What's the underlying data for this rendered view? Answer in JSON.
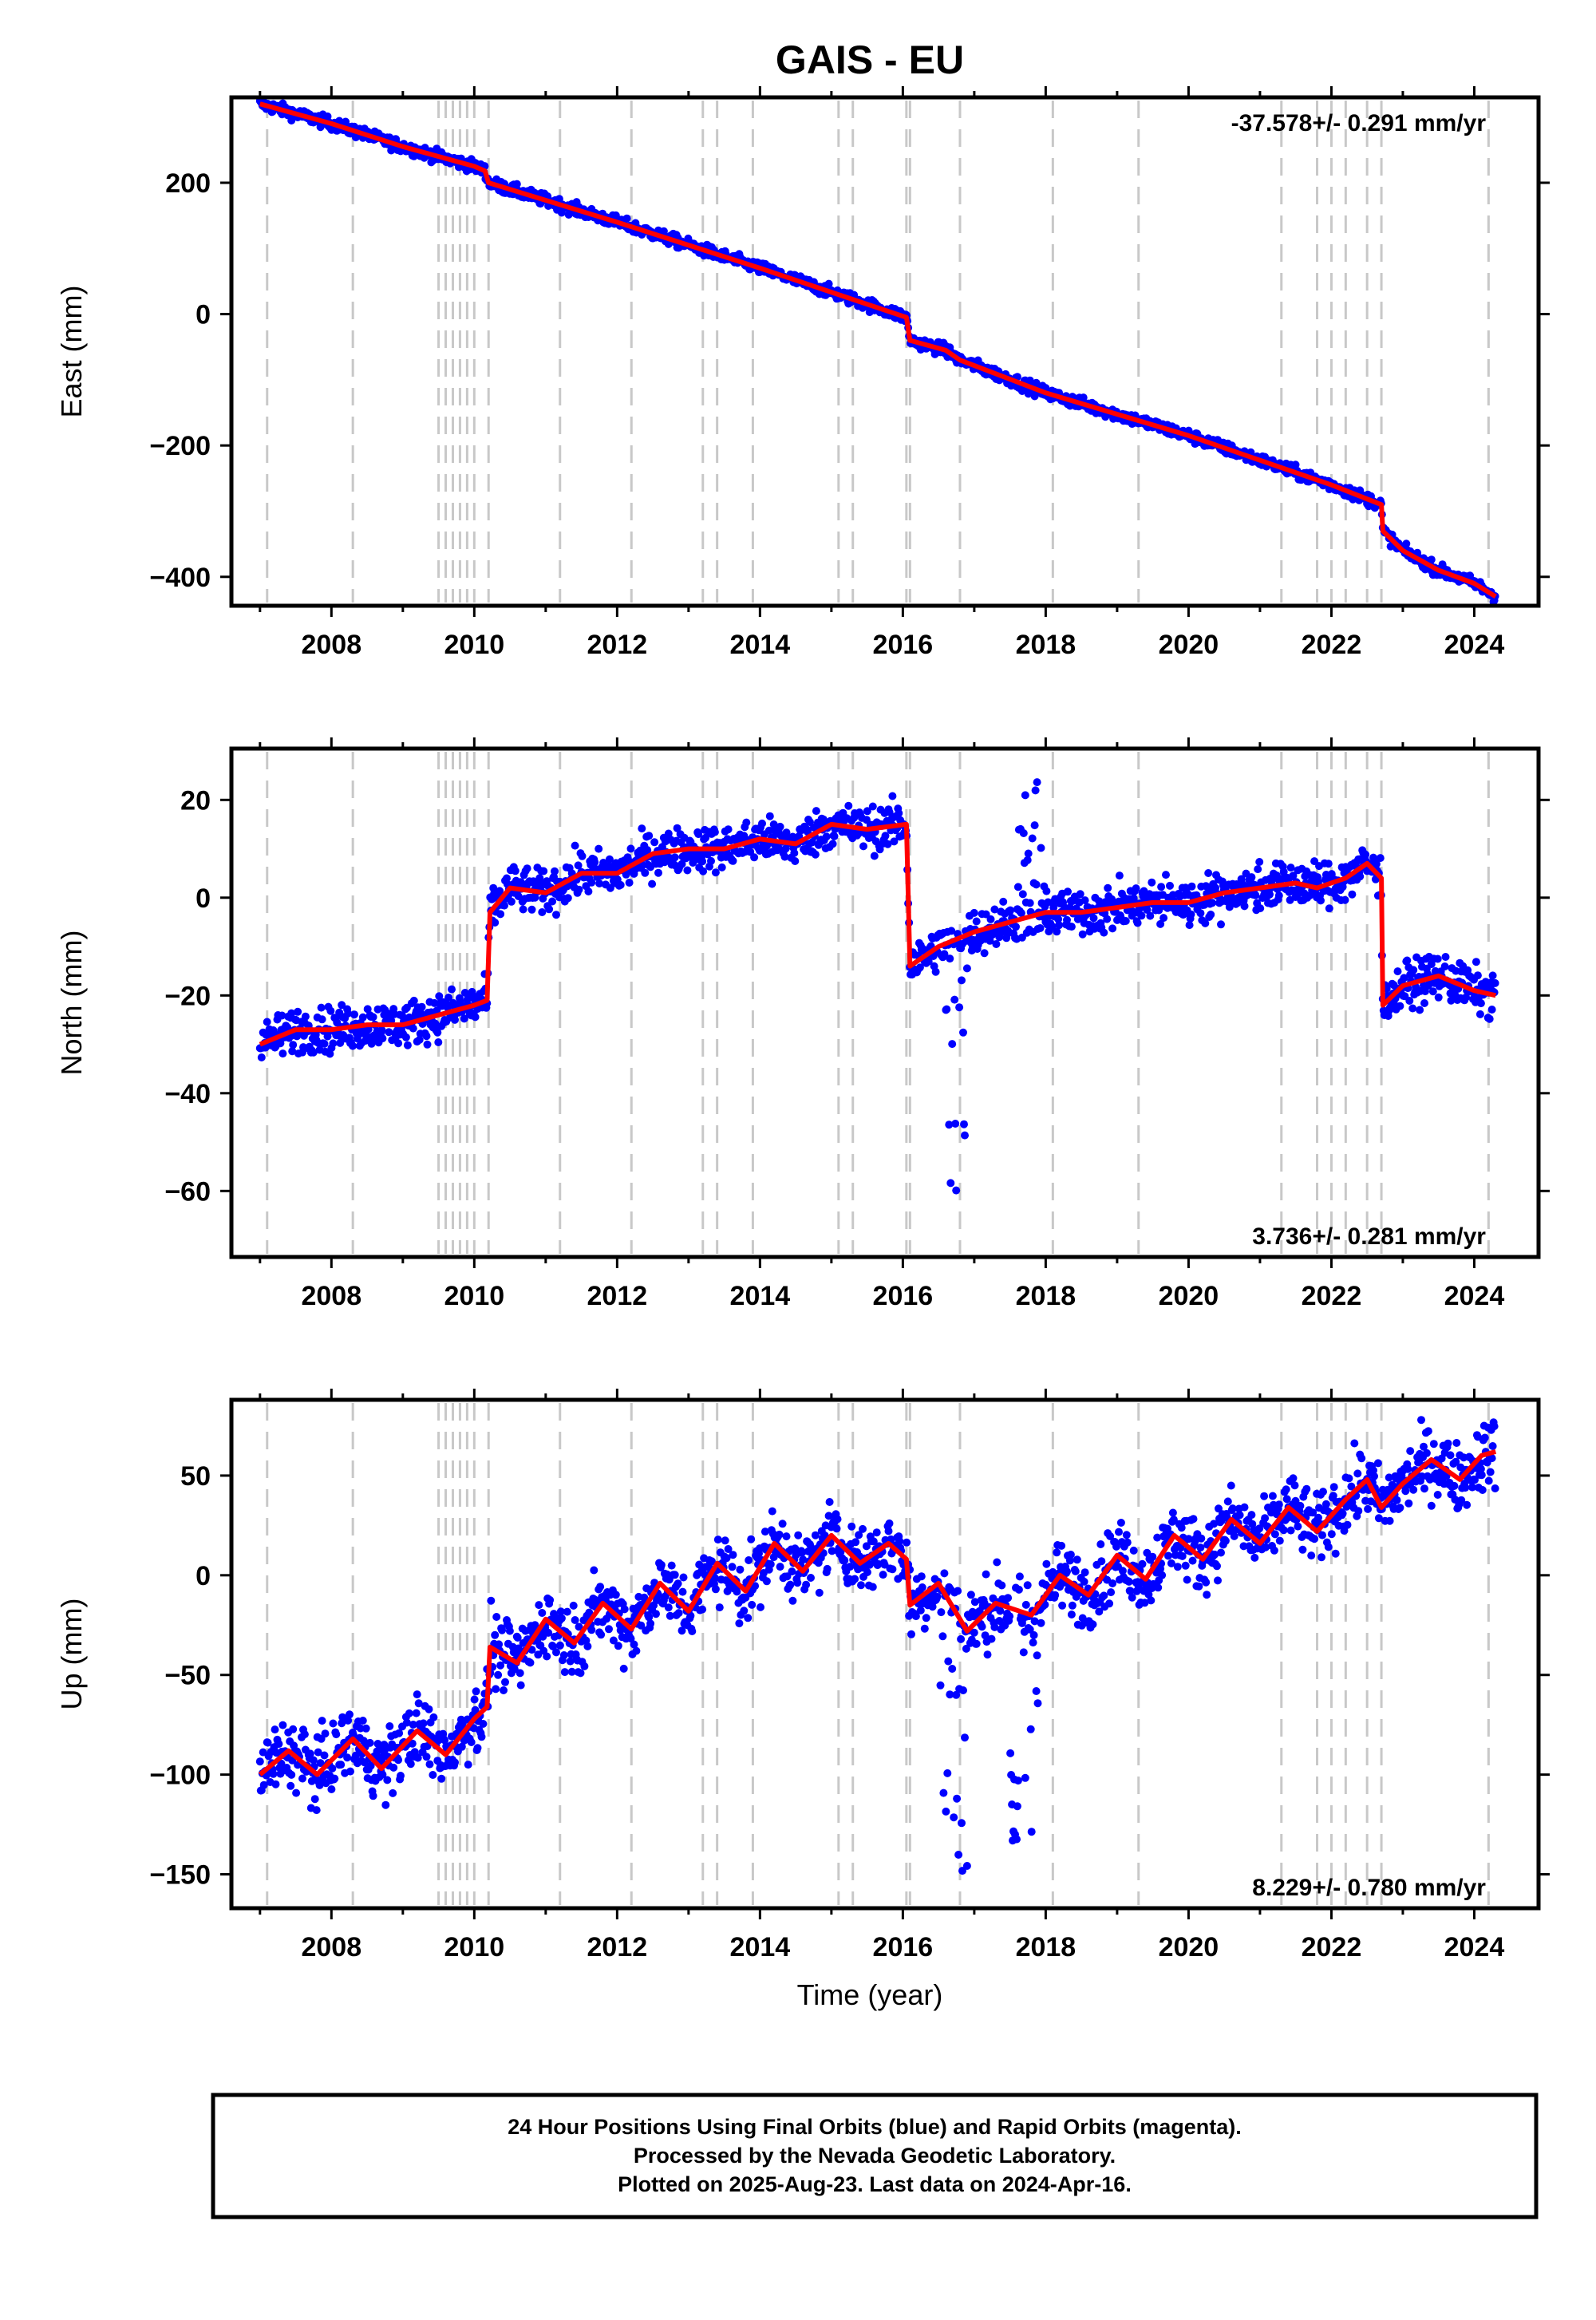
{
  "title": "GAIS - EU",
  "footer": {
    "line1": "24 Hour Positions Using Final Orbits (blue) and Rapid Orbits (magenta).",
    "line2": "Processed by the Nevada Geodetic Laboratory.",
    "line3": "Plotted on 2025-Aug-23. Last data on 2024-Apr-16."
  },
  "xlabel": "Time (year)",
  "colors": {
    "points": "#0000ff",
    "fit": "#ff0000",
    "event_lines": "#c8c8c8",
    "axes": "#000000"
  },
  "chart_data": [
    {
      "type": "scatter",
      "component": "east",
      "ylabel": "East (mm)",
      "rate": "-37.578+/- 0.291 mm/yr",
      "xlim": [
        2006.6,
        2024.9
      ],
      "ylim": [
        -444,
        330
      ],
      "xticks": [
        2008,
        2010,
        2012,
        2014,
        2016,
        2018,
        2020,
        2022,
        2024
      ],
      "yticks": [
        -400,
        -200,
        0,
        200
      ],
      "ytick_labels": [
        "−400",
        "−200",
        "0",
        "200"
      ],
      "events": [
        2007.1,
        2008.3,
        2009.5,
        2009.6,
        2009.7,
        2009.8,
        2009.9,
        2010.0,
        2010.2,
        2011.2,
        2012.2,
        2013.2,
        2013.4,
        2013.9,
        2015.1,
        2015.3,
        2016.05,
        2016.1,
        2016.8,
        2018.1,
        2019.3,
        2021.3,
        2021.8,
        2022.0,
        2022.2,
        2022.5,
        2022.7,
        2024.2
      ],
      "series": [
        {
          "name": "fit",
          "x": [
            2007.0,
            2008.0,
            2009.0,
            2010.0,
            2010.15,
            2010.2,
            2012.0,
            2014.0,
            2015.5,
            2016.05,
            2016.1,
            2016.6,
            2016.8,
            2018.0,
            2020.0,
            2022.0,
            2022.7,
            2022.72,
            2023.0,
            2023.5,
            2024.0,
            2024.3
          ],
          "y": [
            320,
            290,
            255,
            225,
            218,
            200,
            140,
            70,
            15,
            -5,
            -40,
            -55,
            -70,
            -120,
            -185,
            -260,
            -290,
            -330,
            -360,
            -390,
            -410,
            -430
          ]
        }
      ]
    },
    {
      "type": "scatter",
      "component": "north",
      "ylabel": "North (mm)",
      "rate": "3.736+/- 0.281 mm/yr",
      "xlim": [
        2006.6,
        2024.9
      ],
      "ylim": [
        -73.5,
        30.5
      ],
      "xticks": [
        2008,
        2010,
        2012,
        2014,
        2016,
        2018,
        2020,
        2022,
        2024
      ],
      "yticks": [
        -60,
        -40,
        -20,
        0,
        20
      ],
      "ytick_labels": [
        "−60",
        "−40",
        "−20",
        "0",
        "20"
      ],
      "events": [
        2007.1,
        2008.3,
        2009.5,
        2009.6,
        2009.7,
        2009.8,
        2009.9,
        2010.0,
        2010.2,
        2011.2,
        2012.2,
        2013.2,
        2013.4,
        2013.9,
        2015.1,
        2015.3,
        2016.05,
        2016.1,
        2016.8,
        2018.1,
        2019.3,
        2021.3,
        2021.8,
        2022.0,
        2022.2,
        2022.5,
        2022.7,
        2024.2
      ],
      "series": [
        {
          "name": "fit",
          "x": [
            2007.0,
            2007.5,
            2008.0,
            2008.5,
            2009.0,
            2009.5,
            2010.0,
            2010.18,
            2010.22,
            2010.5,
            2011.0,
            2011.5,
            2012.0,
            2012.5,
            2013.0,
            2013.5,
            2014.0,
            2014.5,
            2015.0,
            2015.5,
            2016.05,
            2016.1,
            2016.5,
            2017.0,
            2017.5,
            2018.0,
            2018.5,
            2019.0,
            2019.5,
            2020.0,
            2020.5,
            2021.0,
            2021.5,
            2021.8,
            2022.2,
            2022.5,
            2022.7,
            2022.72,
            2023.0,
            2023.5,
            2024.0,
            2024.3
          ],
          "y": [
            -30,
            -27,
            -27,
            -26,
            -26,
            -24,
            -22,
            -21,
            -3,
            2,
            1,
            5,
            5,
            9,
            10,
            10,
            12,
            11,
            15,
            14,
            15,
            -14,
            -10,
            -7,
            -5,
            -3,
            -3,
            -2,
            -1,
            -1,
            1,
            2,
            3,
            2,
            4,
            7,
            4,
            -22,
            -18,
            -16,
            -19,
            -20
          ]
        }
      ]
    },
    {
      "type": "scatter",
      "component": "up",
      "ylabel": "Up (mm)",
      "rate": "8.229+/- 0.780 mm/yr",
      "xlim": [
        2006.6,
        2024.9
      ],
      "ylim": [
        -167,
        88
      ],
      "xticks": [
        2008,
        2010,
        2012,
        2014,
        2016,
        2018,
        2020,
        2022,
        2024
      ],
      "yticks": [
        -150,
        -100,
        -50,
        0,
        50
      ],
      "ytick_labels": [
        "−150",
        "−100",
        "−50",
        "0",
        "50"
      ],
      "events": [
        2007.1,
        2008.3,
        2009.5,
        2009.6,
        2009.7,
        2009.8,
        2009.9,
        2010.0,
        2010.2,
        2011.2,
        2012.2,
        2013.2,
        2013.4,
        2013.9,
        2015.1,
        2015.3,
        2016.05,
        2016.1,
        2016.8,
        2018.1,
        2019.3,
        2021.3,
        2021.8,
        2022.0,
        2022.2,
        2022.5,
        2022.7,
        2024.2
      ],
      "series": [
        {
          "name": "fit",
          "x": [
            2007.0,
            2007.4,
            2007.8,
            2008.3,
            2008.7,
            2009.2,
            2009.6,
            2010.0,
            2010.18,
            2010.22,
            2010.6,
            2011.0,
            2011.4,
            2011.8,
            2012.2,
            2012.6,
            2013.0,
            2013.4,
            2013.8,
            2014.2,
            2014.6,
            2015.0,
            2015.4,
            2015.8,
            2016.05,
            2016.1,
            2016.5,
            2016.9,
            2017.3,
            2017.8,
            2018.2,
            2018.6,
            2019.0,
            2019.4,
            2019.8,
            2020.2,
            2020.6,
            2021.0,
            2021.4,
            2021.8,
            2022.2,
            2022.5,
            2022.7,
            2023.0,
            2023.4,
            2023.8,
            2024.1,
            2024.3
          ],
          "y": [
            -100,
            -88,
            -100,
            -82,
            -97,
            -78,
            -90,
            -72,
            -66,
            -36,
            -44,
            -22,
            -34,
            -14,
            -27,
            -4,
            -18,
            6,
            -8,
            16,
            2,
            20,
            6,
            16,
            8,
            -15,
            -4,
            -28,
            -14,
            -20,
            0,
            -10,
            10,
            -2,
            20,
            8,
            28,
            16,
            34,
            22,
            38,
            48,
            34,
            46,
            58,
            48,
            60,
            62
          ]
        }
      ]
    }
  ]
}
